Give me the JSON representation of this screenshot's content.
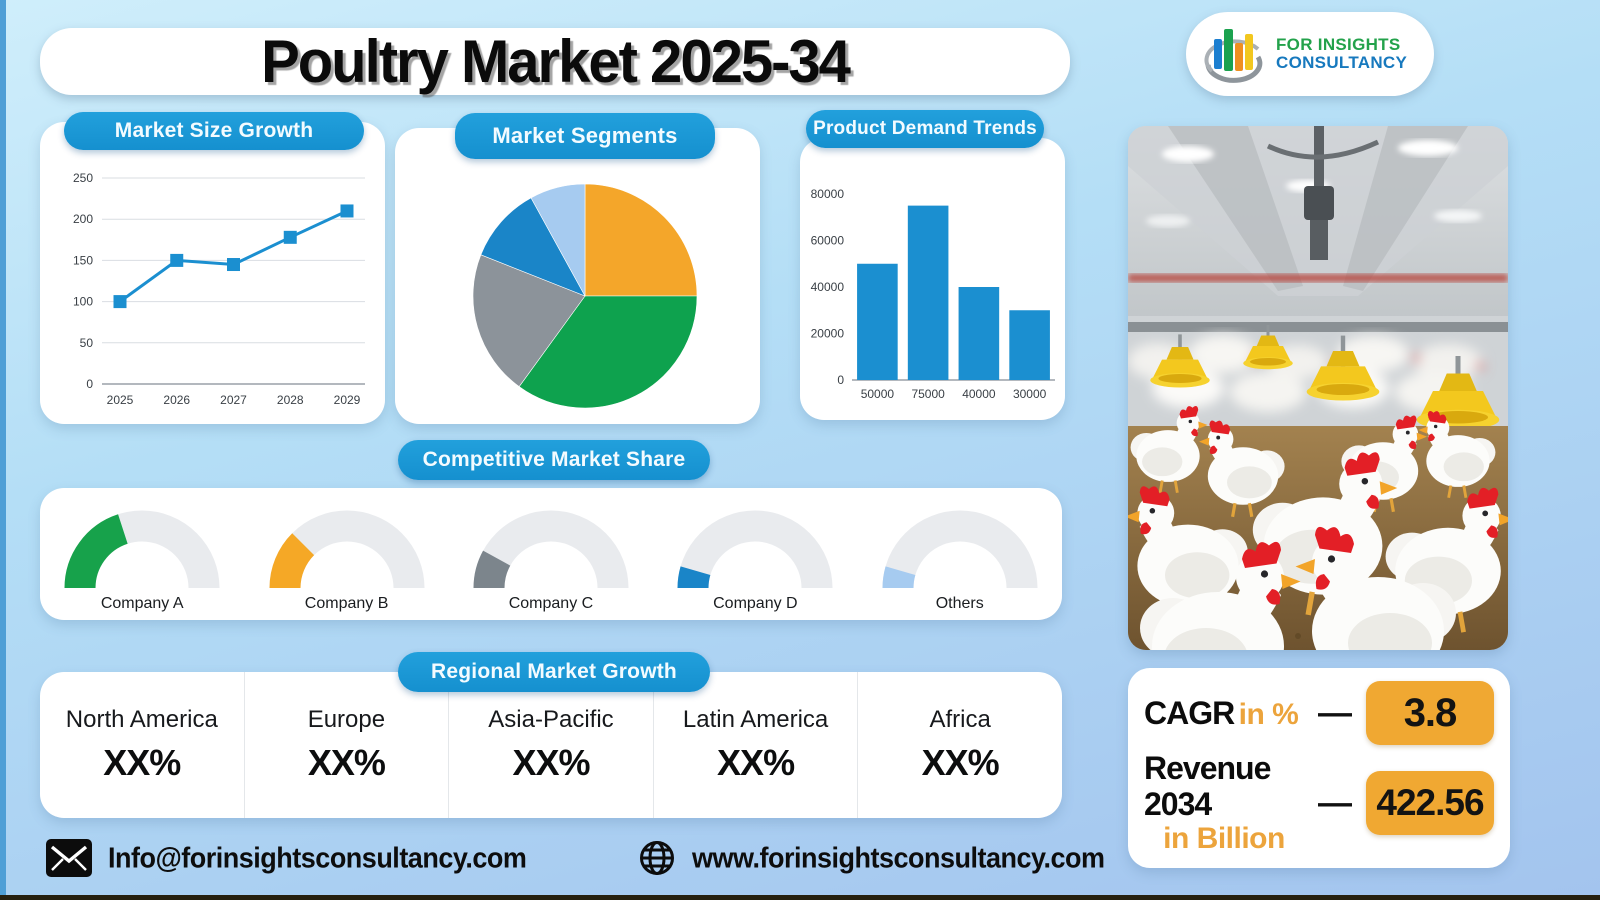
{
  "page": {
    "title": "Poultry Market 2025-34"
  },
  "logo": {
    "line1": "FOR INSIGHTS",
    "line2": "CONSULTANCY"
  },
  "colors": {
    "pill_blue": "#1794d2",
    "chart_blue": "#1b8fd0",
    "accent_orange": "#f0a832",
    "orange_text": "#eca43c",
    "pie_orange": "#f4a62a",
    "pie_green": "#0ea24e",
    "pie_gray": "#8c939a",
    "pie_blue": "#1a85c8",
    "pie_lightblue": "#a6cbf0",
    "gauge_track": "#e9ebee"
  },
  "icons": {
    "mail": "mail-icon",
    "globe": "globe-icon"
  },
  "chart_data": [
    {
      "type": "line",
      "title": "Market Size Growth",
      "x": [
        "2025",
        "2026",
        "2027",
        "2028",
        "2029"
      ],
      "values": [
        100,
        150,
        145,
        178,
        210
      ],
      "ylim": [
        0,
        250
      ],
      "yticks": [
        0,
        50,
        100,
        150,
        200,
        250
      ],
      "color": "#1b8fd0",
      "grid": true,
      "marker": "square"
    },
    {
      "type": "pie",
      "title": "Market Segments",
      "slices": [
        {
          "value": 25,
          "color": "#f4a62a"
        },
        {
          "value": 35,
          "color": "#0ea24e"
        },
        {
          "value": 21,
          "color": "#8c939a"
        },
        {
          "value": 11,
          "color": "#1a85c8"
        },
        {
          "value": 8,
          "color": "#a6cbf0"
        }
      ],
      "start_at_top": true,
      "clockwise": true
    },
    {
      "type": "bar",
      "title": "Product Demand Trends",
      "categories": [
        "50000",
        "75000",
        "40000",
        "30000"
      ],
      "values": [
        50000,
        75000,
        40000,
        30000
      ],
      "ylim": [
        0,
        80000
      ],
      "yticks": [
        0,
        20000,
        40000,
        60000,
        80000
      ],
      "color": "#1b8fd0",
      "grid": false
    },
    {
      "type": "gauge-set",
      "title": "Competitive Market Share",
      "track_color": "#e9ebee",
      "items": [
        {
          "label": "Company A",
          "percent": 40,
          "color": "#17a24b"
        },
        {
          "label": "Company B",
          "percent": 25,
          "color": "#f5a826"
        },
        {
          "label": "Company C",
          "percent": 16,
          "color": "#7c858c"
        },
        {
          "label": "Company D",
          "percent": 9,
          "color": "#1a85c8"
        },
        {
          "label": "Others",
          "percent": 9,
          "color": "#a6cbf0"
        }
      ]
    }
  ],
  "regional": {
    "title": "Regional Market Growth",
    "items": [
      {
        "name": "North America",
        "value": "XX%"
      },
      {
        "name": "Europe",
        "value": "XX%"
      },
      {
        "name": "Asia-Pacific",
        "value": "XX%"
      },
      {
        "name": "Latin America",
        "value": "XX%"
      },
      {
        "name": "Africa",
        "value": "XX%"
      }
    ]
  },
  "stats": {
    "cagr_label": "CAGR",
    "cagr_sub": "in %",
    "cagr_value": "3.8",
    "revenue_label": "Revenue 2034",
    "revenue_sub": "in Billion",
    "revenue_value": "422.56",
    "dash": "—"
  },
  "footer": {
    "email": "Info@forinsightsconsultancy.com",
    "website": "www.forinsightsconsultancy.com"
  }
}
